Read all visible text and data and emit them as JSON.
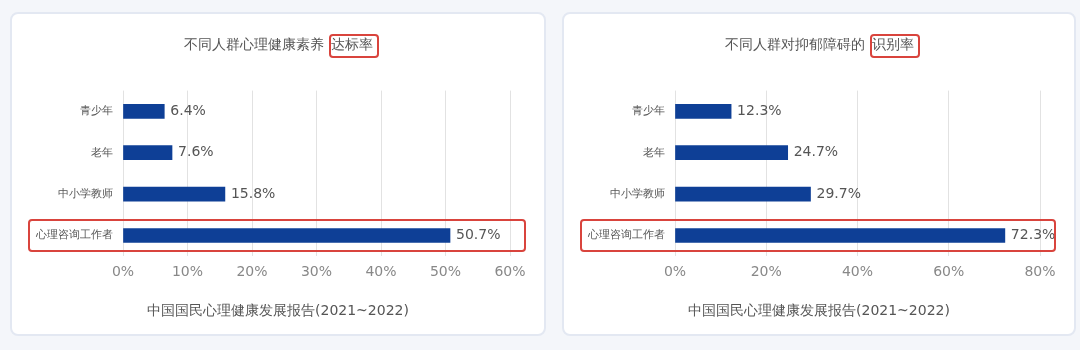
{
  "chart_data": [
    {
      "type": "bar",
      "orientation": "horizontal",
      "title": "不同人群心理健康素养达标率",
      "categories": [
        "青少年",
        "老年",
        "中小学教师",
        "心理咨询工作者"
      ],
      "values": [
        6.4,
        7.6,
        15.8,
        50.7
      ],
      "value_labels": [
        "6.4%",
        "7.6%",
        "15.8%",
        "50.7%"
      ],
      "color": "#0e3f96",
      "xlim": [
        0,
        60
      ],
      "xticks": [
        {
          "value": 0,
          "label": "0%"
        },
        {
          "value": 10,
          "label": "10%"
        },
        {
          "value": 20,
          "label": "20%"
        },
        {
          "value": 30,
          "label": "30%"
        },
        {
          "value": 40,
          "label": "40%"
        },
        {
          "value": 50,
          "label": "50%"
        },
        {
          "value": 60,
          "label": "60%"
        }
      ],
      "grid": "x",
      "legend": false,
      "annotations": [
        "中国国民心理健康发展报告(2021~2022)"
      ]
    },
    {
      "type": "bar",
      "orientation": "horizontal",
      "title": "不同人群对抑郁障碍的识别率",
      "categories": [
        "青少年",
        "老年",
        "中小学教师",
        "心理咨询工作者"
      ],
      "values": [
        12.3,
        24.7,
        29.7,
        72.3
      ],
      "value_labels": [
        "12.3%",
        "24.7%",
        "29.7%",
        "72.3%"
      ],
      "color": "#0e3f96",
      "xlim": [
        0,
        80
      ],
      "xticks": [
        {
          "value": 0,
          "label": "0%"
        },
        {
          "value": 20,
          "label": "20%"
        },
        {
          "value": 40,
          "label": "40%"
        },
        {
          "value": 60,
          "label": "60%"
        },
        {
          "value": 80,
          "label": "80%"
        }
      ],
      "grid": "x",
      "legend": false,
      "annotations": [
        "中国国民心理健康发展报告(2021~2022)"
      ]
    }
  ]
}
